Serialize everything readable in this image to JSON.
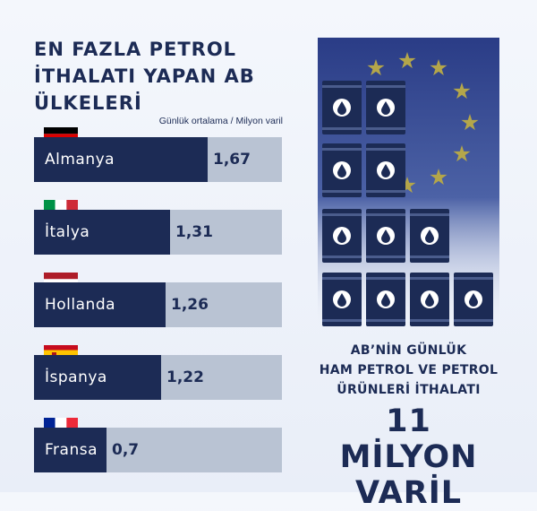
{
  "title": "EN FAZLA PETROL İTHALATI YAPAN AB ÜLKELERİ",
  "unit_note": "Günlük ortalama / Milyon varil",
  "chart_data": {
    "type": "bar",
    "orientation": "horizontal",
    "categories": [
      "Almanya",
      "İtalya",
      "Hollanda",
      "İspanya",
      "Fransa"
    ],
    "values": [
      1.67,
      1.31,
      1.26,
      1.22,
      0.7
    ],
    "value_labels": [
      "1,67",
      "1,31",
      "1,26",
      "1,22",
      "0,7"
    ],
    "unit": "Günlük ortalama / Milyon varil",
    "xlim": [
      0,
      2.38
    ],
    "bar_color": "#1c2b55",
    "track_color": "#b9c3d3",
    "flags": [
      "germany-flag",
      "italy-flag",
      "netherlands-flag",
      "spain-flag",
      "france-flag"
    ]
  },
  "info_panel": {
    "line1": "AB’NİN GÜNLÜK",
    "line2": "HAM PETROL VE PETROL",
    "line3": "ÜRÜNLERİ İTHALATI",
    "big_line1": "11 MİLYON",
    "big_line2": "VARİL",
    "illustration": [
      "eu-stars",
      "oil-barrels"
    ]
  },
  "colors": {
    "navy": "#1c2b55",
    "track": "#b9c3d3",
    "eu_blue": "#2a3c86",
    "star": "#b4a64a",
    "background": "#eef2f9"
  }
}
